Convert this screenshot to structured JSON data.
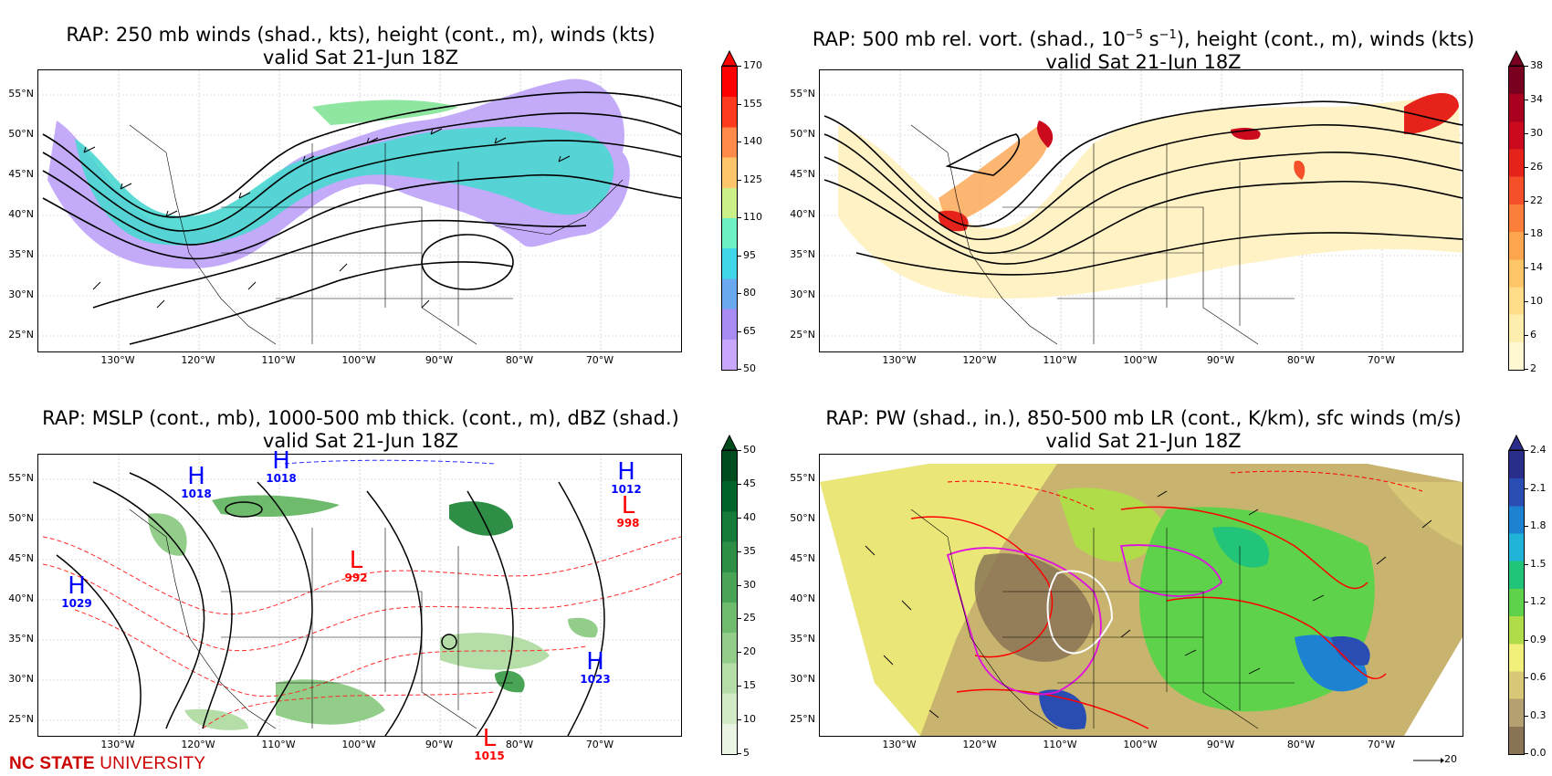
{
  "panels": [
    {
      "id": "p250",
      "title_line1": "RAP: 250 mb winds (shad., kts), height (cont., m), winds (kts)",
      "title_line2": "valid Sat 21-Jun 18Z",
      "colorbar_ticks": [
        "170",
        "155",
        "140",
        "125",
        "110",
        "95",
        "80",
        "65",
        "50"
      ],
      "colorbar_colors": [
        "#ff0000",
        "#ff3b1f",
        "#ff8a4a",
        "#ffc56b",
        "#cbf08a",
        "#6cf0c4",
        "#40d8e8",
        "#6aa8f0",
        "#a88cf4",
        "#c8a8ff"
      ]
    },
    {
      "id": "p500",
      "title_line1": "RAP: 500 mb rel. vort. (shad., 10",
      "title_sup1": "−5",
      "title_mid": " s",
      "title_sup2": "−1",
      "title_end": "), height (cont., m), winds (kts)",
      "title_line2": "valid Sat 21-Jun 18Z",
      "colorbar_ticks": [
        "38",
        "34",
        "30",
        "26",
        "22",
        "18",
        "14",
        "10",
        "6",
        "2"
      ],
      "colorbar_colors": [
        "#7a0020",
        "#a8001e",
        "#cc0a1e",
        "#e6231a",
        "#f5502a",
        "#fb7e3a",
        "#fca44e",
        "#fdc468",
        "#fedc88",
        "#feeeae",
        "#fff8d2"
      ]
    },
    {
      "id": "pmslp",
      "title_line1": "RAP: MSLP (cont., mb), 1000-500 mb thick. (cont., m), dBZ (shad.)",
      "title_line2": "valid Sat 21-Jun 18Z",
      "colorbar_ticks": [
        "50",
        "45",
        "40",
        "35",
        "30",
        "25",
        "20",
        "15",
        "10",
        "5"
      ],
      "colorbar_colors": [
        "#004c1e",
        "#00642a",
        "#167a38",
        "#2e8e46",
        "#4aa456",
        "#6ebb6e",
        "#92cd8a",
        "#b4dda8",
        "#d2eac6",
        "#eaf5e4"
      ]
    },
    {
      "id": "ppw",
      "title_line1": "RAP: PW (shad., in.), 850-500 mb LR (cont., K/km), sfc winds (m/s)",
      "title_line2": "valid Sat 21-Jun 18Z",
      "colorbar_ticks": [
        "2.4",
        "2.1",
        "1.8",
        "1.5",
        "1.2",
        "0.9",
        "0.6",
        "0.3",
        "0.0"
      ],
      "colorbar_colors": [
        "#2a2e8a",
        "#2a4db4",
        "#1e82d2",
        "#20b4d8",
        "#22c47a",
        "#5ed24a",
        "#b0dc4a",
        "#f0f07a",
        "#d8c878",
        "#b4a070",
        "#8a7456"
      ]
    }
  ],
  "lat_labels": [
    "55°N",
    "50°N",
    "45°N",
    "40°N",
    "35°N",
    "30°N",
    "25°N"
  ],
  "lon_labels": [
    "130°W",
    "120°W",
    "110°W",
    "100°W",
    "90°W",
    "80°W",
    "70°W"
  ],
  "pressure_centers": [
    {
      "letter": "H",
      "value": "1018",
      "color": "#0000ff"
    },
    {
      "letter": "H",
      "value": "1018",
      "color": "#0000ff"
    },
    {
      "letter": "H",
      "value": "1012",
      "color": "#0000ff"
    },
    {
      "letter": "L",
      "value": "998",
      "color": "#ff0000"
    },
    {
      "letter": "L",
      "value": "992",
      "color": "#ff0000"
    },
    {
      "letter": "H",
      "value": "1029",
      "color": "#0000ff"
    },
    {
      "letter": "H",
      "value": "1023",
      "color": "#0000ff"
    },
    {
      "letter": "L",
      "value": "1015",
      "color": "#ff0000"
    }
  ],
  "footer": {
    "logo_bold": "NC STATE",
    "logo_light": " UNIVERSITY"
  },
  "reference_vector": {
    "label": "20"
  }
}
